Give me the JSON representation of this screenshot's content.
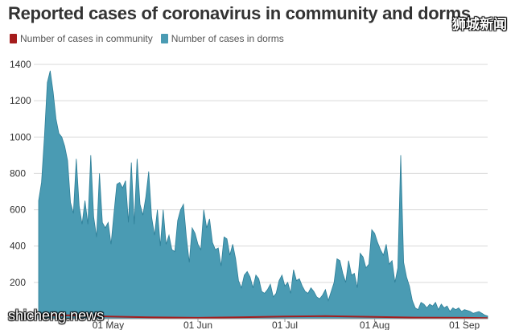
{
  "title": "Reported cases of coronavirus in community and dorms",
  "watermark_top": "狮城新闻",
  "watermark_bottom": "shicheng.news",
  "colors": {
    "community": "#a51c1c",
    "dorms": "#4a9bb3",
    "dorms_stroke": "#2e7f98",
    "grid": "#d9d9d9",
    "text": "#333333"
  },
  "chart_data": {
    "type": "area",
    "title": "Reported cases of coronavirus in community and dorms",
    "ylim": [
      0,
      1400
    ],
    "yticks": [
      200,
      400,
      600,
      800,
      1000,
      1200,
      1400
    ],
    "xlim": [
      "2020-04-07",
      "2020-09-09"
    ],
    "xticks": [
      {
        "date": "2020-05-01",
        "label": "01 May"
      },
      {
        "date": "2020-06-01",
        "label": "01 Jun"
      },
      {
        "date": "2020-07-01",
        "label": "01 Jul"
      },
      {
        "date": "2020-08-01",
        "label": "01 Aug"
      },
      {
        "date": "2020-09-01",
        "label": "01 Sep"
      }
    ],
    "grid": true,
    "legend_position": "top-left",
    "series": [
      {
        "name": "Number of cases in community",
        "points": [
          [
            "2020-04-07",
            20
          ],
          [
            "2020-04-20",
            18
          ],
          [
            "2020-05-01",
            12
          ],
          [
            "2020-05-15",
            8
          ],
          [
            "2020-06-01",
            5
          ],
          [
            "2020-06-15",
            8
          ],
          [
            "2020-07-01",
            12
          ],
          [
            "2020-07-15",
            14
          ],
          [
            "2020-08-01",
            10
          ],
          [
            "2020-08-15",
            6
          ],
          [
            "2020-09-01",
            5
          ],
          [
            "2020-09-09",
            3
          ]
        ]
      },
      {
        "name": "Number of cases in dorms",
        "points": [
          [
            "2020-04-07",
            650
          ],
          [
            "2020-04-08",
            750
          ],
          [
            "2020-04-09",
            1000
          ],
          [
            "2020-04-10",
            1300
          ],
          [
            "2020-04-11",
            1365
          ],
          [
            "2020-04-12",
            1250
          ],
          [
            "2020-04-13",
            1100
          ],
          [
            "2020-04-14",
            1020
          ],
          [
            "2020-04-15",
            1000
          ],
          [
            "2020-04-16",
            950
          ],
          [
            "2020-04-17",
            870
          ],
          [
            "2020-04-18",
            640
          ],
          [
            "2020-04-19",
            580
          ],
          [
            "2020-04-20",
            880
          ],
          [
            "2020-04-21",
            620
          ],
          [
            "2020-04-22",
            520
          ],
          [
            "2020-04-23",
            650
          ],
          [
            "2020-04-24",
            520
          ],
          [
            "2020-04-25",
            900
          ],
          [
            "2020-04-26",
            560
          ],
          [
            "2020-04-27",
            450
          ],
          [
            "2020-04-28",
            800
          ],
          [
            "2020-04-29",
            530
          ],
          [
            "2020-04-30",
            500
          ],
          [
            "2020-05-01",
            530
          ],
          [
            "2020-05-02",
            410
          ],
          [
            "2020-05-03",
            580
          ],
          [
            "2020-05-04",
            740
          ],
          [
            "2020-05-05",
            750
          ],
          [
            "2020-05-06",
            720
          ],
          [
            "2020-05-07",
            760
          ],
          [
            "2020-05-08",
            530
          ],
          [
            "2020-05-09",
            860
          ],
          [
            "2020-05-10",
            520
          ],
          [
            "2020-05-11",
            880
          ],
          [
            "2020-05-12",
            630
          ],
          [
            "2020-05-13",
            570
          ],
          [
            "2020-05-14",
            670
          ],
          [
            "2020-05-15",
            810
          ],
          [
            "2020-05-16",
            560
          ],
          [
            "2020-05-17",
            460
          ],
          [
            "2020-05-18",
            600
          ],
          [
            "2020-05-19",
            400
          ],
          [
            "2020-05-20",
            600
          ],
          [
            "2020-05-21",
            410
          ],
          [
            "2020-05-22",
            460
          ],
          [
            "2020-05-23",
            380
          ],
          [
            "2020-05-24",
            370
          ],
          [
            "2020-05-25",
            540
          ],
          [
            "2020-05-26",
            600
          ],
          [
            "2020-05-27",
            630
          ],
          [
            "2020-05-28",
            450
          ],
          [
            "2020-05-29",
            310
          ],
          [
            "2020-05-30",
            500
          ],
          [
            "2020-05-31",
            470
          ],
          [
            "2020-06-01",
            410
          ],
          [
            "2020-06-02",
            380
          ],
          [
            "2020-06-03",
            600
          ],
          [
            "2020-06-04",
            500
          ],
          [
            "2020-06-05",
            550
          ],
          [
            "2020-06-06",
            420
          ],
          [
            "2020-06-07",
            380
          ],
          [
            "2020-06-08",
            390
          ],
          [
            "2020-06-09",
            290
          ],
          [
            "2020-06-10",
            450
          ],
          [
            "2020-06-11",
            440
          ],
          [
            "2020-06-12",
            350
          ],
          [
            "2020-06-13",
            410
          ],
          [
            "2020-06-14",
            330
          ],
          [
            "2020-06-15",
            210
          ],
          [
            "2020-06-16",
            170
          ],
          [
            "2020-06-17",
            240
          ],
          [
            "2020-06-18",
            260
          ],
          [
            "2020-06-19",
            230
          ],
          [
            "2020-06-20",
            170
          ],
          [
            "2020-06-21",
            240
          ],
          [
            "2020-06-22",
            220
          ],
          [
            "2020-06-23",
            150
          ],
          [
            "2020-06-24",
            140
          ],
          [
            "2020-06-25",
            160
          ],
          [
            "2020-06-26",
            190
          ],
          [
            "2020-06-27",
            120
          ],
          [
            "2020-06-28",
            140
          ],
          [
            "2020-06-29",
            210
          ],
          [
            "2020-06-30",
            240
          ],
          [
            "2020-07-01",
            180
          ],
          [
            "2020-07-02",
            200
          ],
          [
            "2020-07-03",
            140
          ],
          [
            "2020-07-04",
            270
          ],
          [
            "2020-07-05",
            210
          ],
          [
            "2020-07-06",
            220
          ],
          [
            "2020-07-07",
            180
          ],
          [
            "2020-07-08",
            150
          ],
          [
            "2020-07-09",
            140
          ],
          [
            "2020-07-10",
            170
          ],
          [
            "2020-07-11",
            150
          ],
          [
            "2020-07-12",
            120
          ],
          [
            "2020-07-13",
            110
          ],
          [
            "2020-07-14",
            130
          ],
          [
            "2020-07-15",
            160
          ],
          [
            "2020-07-16",
            100
          ],
          [
            "2020-07-17",
            150
          ],
          [
            "2020-07-18",
            200
          ],
          [
            "2020-07-19",
            330
          ],
          [
            "2020-07-20",
            320
          ],
          [
            "2020-07-21",
            250
          ],
          [
            "2020-07-22",
            200
          ],
          [
            "2020-07-23",
            320
          ],
          [
            "2020-07-24",
            240
          ],
          [
            "2020-07-25",
            250
          ],
          [
            "2020-07-26",
            170
          ],
          [
            "2020-07-27",
            360
          ],
          [
            "2020-07-28",
            340
          ],
          [
            "2020-07-29",
            280
          ],
          [
            "2020-07-30",
            300
          ],
          [
            "2020-07-31",
            490
          ],
          [
            "2020-08-01",
            470
          ],
          [
            "2020-08-02",
            420
          ],
          [
            "2020-08-03",
            380
          ],
          [
            "2020-08-04",
            350
          ],
          [
            "2020-08-05",
            410
          ],
          [
            "2020-08-06",
            300
          ],
          [
            "2020-08-07",
            320
          ],
          [
            "2020-08-08",
            200
          ],
          [
            "2020-08-09",
            280
          ],
          [
            "2020-08-10",
            900
          ],
          [
            "2020-08-11",
            310
          ],
          [
            "2020-08-12",
            230
          ],
          [
            "2020-08-13",
            180
          ],
          [
            "2020-08-14",
            100
          ],
          [
            "2020-08-15",
            60
          ],
          [
            "2020-08-16",
            50
          ],
          [
            "2020-08-17",
            90
          ],
          [
            "2020-08-18",
            80
          ],
          [
            "2020-08-19",
            60
          ],
          [
            "2020-08-20",
            80
          ],
          [
            "2020-08-21",
            70
          ],
          [
            "2020-08-22",
            90
          ],
          [
            "2020-08-23",
            50
          ],
          [
            "2020-08-24",
            80
          ],
          [
            "2020-08-25",
            60
          ],
          [
            "2020-08-26",
            70
          ],
          [
            "2020-08-27",
            40
          ],
          [
            "2020-08-28",
            60
          ],
          [
            "2020-08-29",
            50
          ],
          [
            "2020-08-30",
            60
          ],
          [
            "2020-08-31",
            40
          ],
          [
            "2020-09-01",
            50
          ],
          [
            "2020-09-02",
            45
          ],
          [
            "2020-09-03",
            40
          ],
          [
            "2020-09-04",
            30
          ],
          [
            "2020-09-05",
            35
          ],
          [
            "2020-09-06",
            40
          ],
          [
            "2020-09-07",
            30
          ],
          [
            "2020-09-08",
            20
          ],
          [
            "2020-09-09",
            15
          ]
        ]
      }
    ]
  }
}
